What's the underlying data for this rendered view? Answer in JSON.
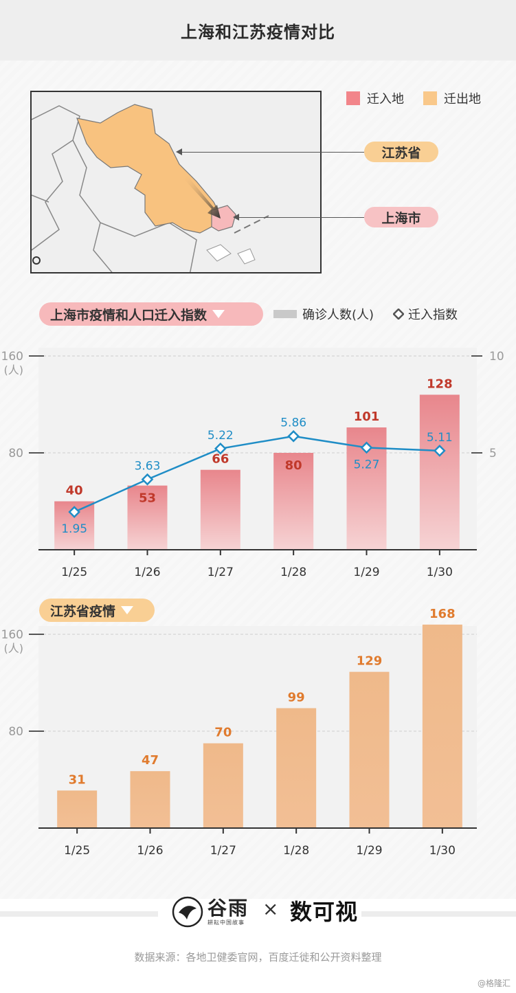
{
  "header": {
    "title": "上海和江苏疫情对比"
  },
  "map": {
    "legend": [
      {
        "label": "迁入地",
        "color": "#f2858a"
      },
      {
        "label": "迁出地",
        "color": "#f9c88a"
      }
    ],
    "labels": {
      "jiangsu": "江苏省",
      "shanghai": "上海市"
    },
    "colors": {
      "jiangsu": "#f8c27f",
      "shanghai": "#f7b9bb"
    }
  },
  "sections": {
    "shanghai_title": "上海市疫情和人口迁入指数",
    "jiangsu_title": "江苏省疫情"
  },
  "legend2": {
    "bar_label": "确诊人数(人)",
    "line_label": "迁入指数"
  },
  "footer": {
    "brand_left": "谷雨",
    "brand_left_sub": "耕耘中国故事",
    "times": "×",
    "brand_right": "数可视",
    "source": "数据来源：各地卫健委官网，百度迁徙和公开资料整理",
    "credit": "@格隆汇"
  },
  "chart_data": [
    {
      "type": "bar",
      "title": "上海市疫情和人口迁入指数",
      "categories": [
        "1/25",
        "1/26",
        "1/27",
        "1/28",
        "1/29",
        "1/30"
      ],
      "series": [
        {
          "name": "确诊人数(人)",
          "values": [
            40,
            53,
            66,
            80,
            101,
            128
          ],
          "color": "#e8868c",
          "label_color": "#c0392b"
        },
        {
          "name": "迁入指数",
          "type": "line",
          "axis": "right",
          "values": [
            1.95,
            3.63,
            5.22,
            5.86,
            5.27,
            5.11
          ],
          "color": "#1f8dc6"
        }
      ],
      "ylabel": "(人)",
      "ylim": [
        0,
        160
      ],
      "yticks": [
        80,
        160
      ],
      "y2lim": [
        0,
        10
      ],
      "y2ticks": [
        5,
        10
      ],
      "grid": true
    },
    {
      "type": "bar",
      "title": "江苏省疫情",
      "categories": [
        "1/25",
        "1/26",
        "1/27",
        "1/28",
        "1/29",
        "1/30"
      ],
      "values": [
        31,
        47,
        70,
        99,
        129,
        168
      ],
      "color": "#f0b88a",
      "label_color": "#e07b2e",
      "ylabel": "(人)",
      "ylim": [
        0,
        160
      ],
      "yticks": [
        80,
        160
      ],
      "grid": true
    }
  ]
}
